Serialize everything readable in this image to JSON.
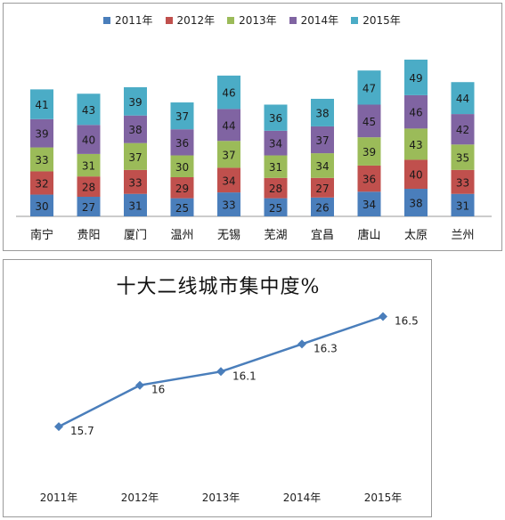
{
  "colors": {
    "series": [
      "#4a7ebb",
      "#c0504d",
      "#9bbb59",
      "#8064a2",
      "#4bacc6"
    ],
    "line": "#4a7ebb"
  },
  "chart_data": [
    {
      "type": "bar",
      "stacked": true,
      "categories": [
        "南宁",
        "贵阳",
        "厦门",
        "温州",
        "无锡",
        "芜湖",
        "宜昌",
        "唐山",
        "太原",
        "兰州"
      ],
      "series": [
        {
          "name": "2011年",
          "values": [
            30,
            27,
            31,
            25,
            33,
            25,
            26,
            34,
            38,
            31
          ]
        },
        {
          "name": "2012年",
          "values": [
            32,
            28,
            33,
            29,
            34,
            28,
            27,
            36,
            40,
            33
          ]
        },
        {
          "name": "2013年",
          "values": [
            33,
            31,
            37,
            30,
            37,
            31,
            34,
            39,
            43,
            35
          ]
        },
        {
          "name": "2014年",
          "values": [
            39,
            40,
            38,
            36,
            44,
            34,
            37,
            45,
            46,
            42
          ]
        },
        {
          "name": "2015年",
          "values": [
            41,
            43,
            39,
            37,
            46,
            36,
            38,
            47,
            49,
            44
          ]
        }
      ],
      "legend_position": "top",
      "grid": false
    },
    {
      "type": "line",
      "title": "十大二线城市集中度%",
      "categories": [
        "2011年",
        "2012年",
        "2013年",
        "2014年",
        "2015年"
      ],
      "values": [
        15.7,
        16,
        16.1,
        16.3,
        16.5
      ],
      "labels": [
        "15.7",
        "16",
        "16.1",
        "16.3",
        "16.5"
      ],
      "ylim": [
        15.5,
        16.6
      ],
      "grid": false
    }
  ]
}
